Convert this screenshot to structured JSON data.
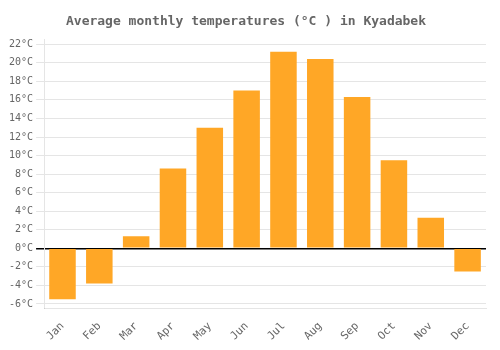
{
  "chart_data": {
    "type": "bar",
    "title": "Average monthly temperatures (°C ) in Kyadabek",
    "categories": [
      "Jan",
      "Feb",
      "Mar",
      "Apr",
      "May",
      "Jun",
      "Jul",
      "Aug",
      "Sep",
      "Oct",
      "Nov",
      "Dec"
    ],
    "values": [
      -5.5,
      -3.8,
      1.3,
      8.6,
      13.0,
      17.0,
      21.2,
      20.4,
      16.3,
      9.5,
      3.3,
      -2.5
    ],
    "color": "#FFA726",
    "ylim": [
      -6.5,
      22.5
    ],
    "yticks": [
      {
        "value": -6,
        "label": "-6°C"
      },
      {
        "value": -4,
        "label": "-4°C"
      },
      {
        "value": -2,
        "label": "-2°C"
      },
      {
        "value": 0,
        "label": "0°C"
      },
      {
        "value": 2,
        "label": "2°C"
      },
      {
        "value": 4,
        "label": "4°C"
      },
      {
        "value": 6,
        "label": "6°C"
      },
      {
        "value": 8,
        "label": "8°C"
      },
      {
        "value": 10,
        "label": "10°C"
      },
      {
        "value": 12,
        "label": "12°C"
      },
      {
        "value": 14,
        "label": "14°C"
      },
      {
        "value": 16,
        "label": "16°C"
      },
      {
        "value": 18,
        "label": "18°C"
      },
      {
        "value": 20,
        "label": "20°C"
      },
      {
        "value": 22,
        "label": "22°C"
      }
    ],
    "grid": true
  }
}
